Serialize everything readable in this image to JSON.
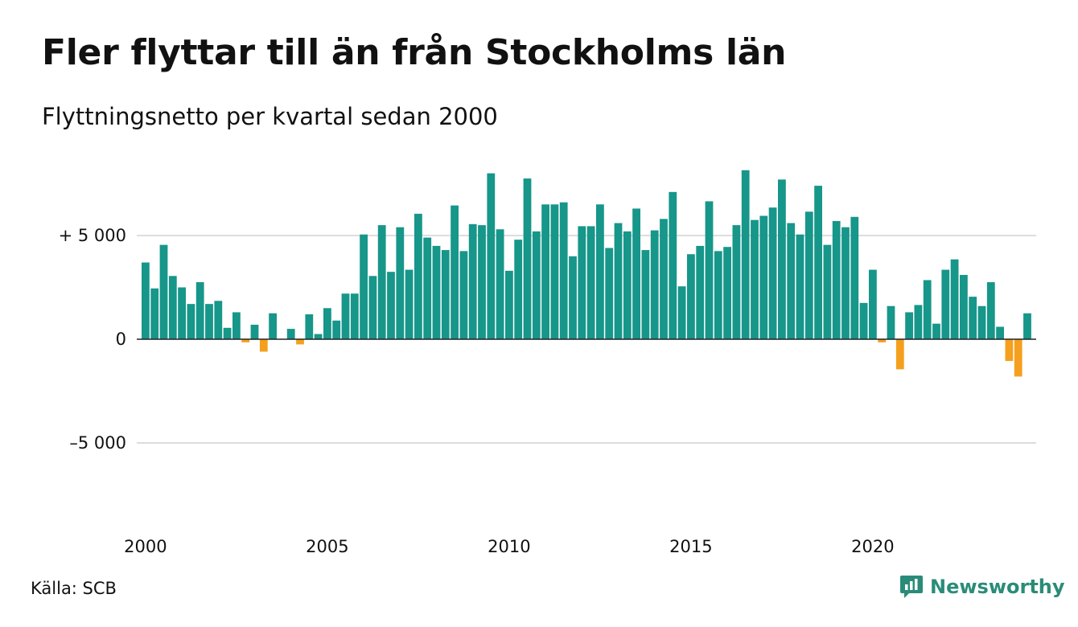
{
  "header": {
    "title": "Fler flyttar till än från Stockholms län",
    "subtitle": "Flyttningsnetto per kvartal sedan 2000"
  },
  "footer": {
    "source": "Källa: SCB",
    "brand": "Newsworthy",
    "brand_icon": "bar-chart-logo-icon"
  },
  "colors": {
    "positive": "#17968a",
    "negative": "#f4a01e",
    "grid": "#dddddd",
    "brand": "#2a8c78"
  },
  "chart_data": {
    "type": "bar",
    "x_start": "2000 Q1",
    "frequency": "quarterly",
    "ylim": [
      -10000,
      10000
    ],
    "yticks": [
      {
        "value": 5000,
        "label": "+ 5 000"
      },
      {
        "value": 0,
        "label": "0"
      },
      {
        "value": -5000,
        "label": "–5 000"
      }
    ],
    "xticks": [
      {
        "index": 0,
        "label": "2000"
      },
      {
        "index": 20,
        "label": "2005"
      },
      {
        "index": 40,
        "label": "2010"
      },
      {
        "index": 60,
        "label": "2015"
      },
      {
        "index": 80,
        "label": "2020"
      }
    ],
    "grid": true,
    "values": [
      3700,
      2450,
      4550,
      3050,
      2500,
      1700,
      2750,
      1700,
      1850,
      550,
      1300,
      -150,
      700,
      -600,
      1250,
      0,
      500,
      -250,
      1200,
      250,
      1500,
      900,
      2200,
      2200,
      5050,
      3050,
      5500,
      3250,
      5400,
      3350,
      6050,
      4900,
      4500,
      4300,
      6450,
      4250,
      5550,
      5500,
      8000,
      5300,
      3300,
      4800,
      7750,
      5200,
      6500,
      6500,
      6600,
      4000,
      5450,
      5450,
      6500,
      4400,
      5600,
      5200,
      6300,
      4300,
      5250,
      5800,
      7100,
      2550,
      4100,
      4500,
      6650,
      4250,
      4450,
      5500,
      8150,
      5750,
      5950,
      6350,
      7700,
      5600,
      5050,
      6150,
      7400,
      4550,
      5700,
      5400,
      5900,
      1750,
      3350,
      -150,
      1600,
      -1450,
      1300,
      1650,
      2850,
      750,
      3350,
      3850,
      3100,
      2050,
      1600,
      2750,
      600,
      -1050,
      -1800,
      1250
    ]
  }
}
